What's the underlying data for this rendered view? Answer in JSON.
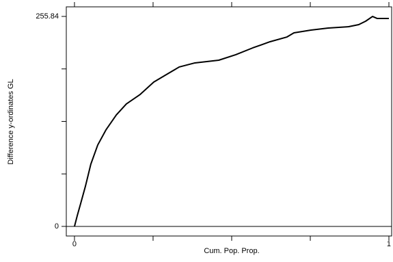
{
  "chart_data": {
    "type": "line",
    "xlabel": "Cum. Pop. Prop.",
    "ylabel": "Difference y-ordinates GL",
    "x": [
      0,
      0.009,
      0.02,
      0.035,
      0.052,
      0.074,
      0.1,
      0.133,
      0.165,
      0.209,
      0.252,
      0.296,
      0.333,
      0.383,
      0.459,
      0.513,
      0.567,
      0.622,
      0.676,
      0.698,
      0.752,
      0.807,
      0.872,
      0.904,
      0.926,
      0.948,
      0.963,
      1.0
    ],
    "series": [
      {
        "color": "#000000",
        "values": [
          0,
          13.3,
          28.3,
          49.2,
          75.8,
          99.2,
          117.5,
          135.8,
          149.2,
          160.8,
          175.8,
          185.8,
          194.2,
          199.2,
          202.5,
          209.2,
          217.5,
          225.0,
          230.8,
          235.8,
          239.2,
          241.7,
          243.3,
          245.8,
          250.0,
          255.8,
          253.3,
          253.3
        ]
      }
    ],
    "xlim": [
      -0.026,
      1.0087
    ],
    "ylim": [
      -11.7,
      267.5
    ],
    "xticks": [
      0,
      1
    ],
    "xminor": [
      0.25,
      0.5,
      0.75
    ],
    "yticks": [
      0,
      255.84
    ],
    "yminor": [
      63.96,
      127.92,
      191.88
    ]
  }
}
